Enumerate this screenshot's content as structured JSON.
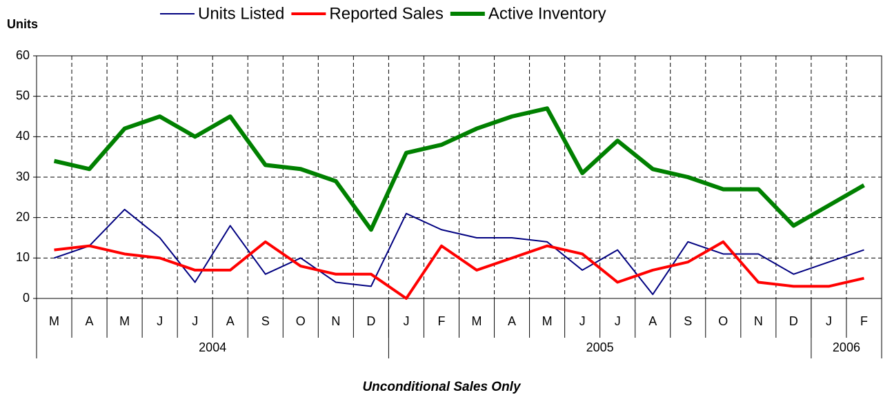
{
  "chart_data": {
    "type": "line",
    "y_axis_label": "Units",
    "footer": "Unconditional Sales Only",
    "categories": [
      "M",
      "A",
      "M",
      "J",
      "J",
      "A",
      "S",
      "O",
      "N",
      "D",
      "J",
      "F",
      "M",
      "A",
      "M",
      "J",
      "J",
      "A",
      "S",
      "O",
      "N",
      "D",
      "J",
      "F"
    ],
    "x_groups": [
      {
        "label": "2004",
        "count": 10
      },
      {
        "label": "2005",
        "count": 12
      },
      {
        "label": "2006",
        "count": 2
      }
    ],
    "ylim": [
      0,
      60
    ],
    "yticks": [
      0,
      10,
      20,
      30,
      40,
      50,
      60
    ],
    "grid": true,
    "series": [
      {
        "name": "Units Listed",
        "color": "#000080",
        "line_width": 2,
        "values": [
          10,
          13,
          22,
          15,
          4,
          18,
          6,
          10,
          4,
          3,
          21,
          17,
          15,
          15,
          14,
          7,
          12,
          1,
          14,
          11,
          11,
          6,
          9,
          12
        ]
      },
      {
        "name": "Reported Sales",
        "color": "#ff0000",
        "line_width": 4,
        "values": [
          12,
          13,
          11,
          10,
          7,
          7,
          14,
          8,
          6,
          6,
          0,
          13,
          7,
          10,
          13,
          11,
          4,
          7,
          9,
          14,
          4,
          3,
          3,
          5
        ]
      },
      {
        "name": "Active Inventory",
        "color": "#008000",
        "line_width": 6,
        "values": [
          34,
          32,
          42,
          45,
          40,
          45,
          33,
          32,
          29,
          17,
          36,
          38,
          42,
          45,
          47,
          31,
          39,
          32,
          30,
          27,
          27,
          18,
          23,
          28
        ]
      }
    ]
  }
}
